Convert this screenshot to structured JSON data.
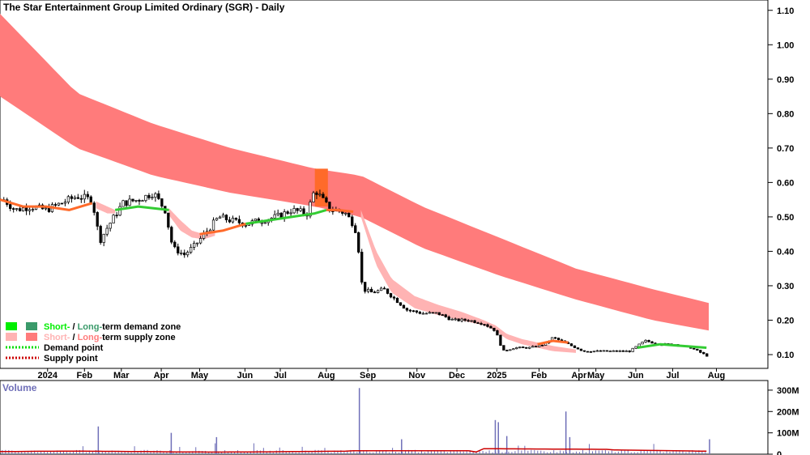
{
  "chart_data": {
    "type": "candlestick",
    "title": "The Star Entertainment Group Limited Ordinary (SGR) - Daily",
    "price_axis": {
      "range": [
        0.06,
        1.13
      ],
      "ticks": [
        0.1,
        0.2,
        0.3,
        0.4,
        0.5,
        0.6,
        0.7,
        0.8,
        0.9,
        1.0,
        1.1
      ],
      "tick_labels": [
        "0.10",
        "0.20",
        "0.30",
        "0.40",
        "0.50",
        "0.60",
        "0.70",
        "0.80",
        "0.90",
        "1.00",
        "1.10"
      ]
    },
    "x_axis": {
      "range": [
        0,
        100
      ],
      "labels": [
        {
          "label": "2024",
          "x": 6.2
        },
        {
          "label": "Feb",
          "x": 11.0
        },
        {
          "label": "Mar",
          "x": 15.8
        },
        {
          "label": "Apr",
          "x": 21.0
        },
        {
          "label": "May",
          "x": 26.0
        },
        {
          "label": "Jun",
          "x": 31.9
        },
        {
          "label": "Jul",
          "x": 36.5
        },
        {
          "label": "Aug",
          "x": 42.5
        },
        {
          "label": "Sep",
          "x": 47.9
        },
        {
          "label": "Nov",
          "x": 54.3
        },
        {
          "label": "Dec",
          "x": 59.5
        },
        {
          "label": "2025",
          "x": 64.7
        },
        {
          "label": "Feb",
          "x": 70.2
        },
        {
          "label": "Apr",
          "x": 75.4
        },
        {
          "label": "May",
          "x": 77.6
        },
        {
          "label": "Jun",
          "x": 82.8
        },
        {
          "label": "Jul",
          "x": 87.6
        },
        {
          "label": "Aug",
          "x": 93.3
        }
      ]
    },
    "long_term_supply_zone": {
      "color": "#ff7b7b",
      "x": [
        0,
        10,
        20,
        30,
        41,
        47,
        55,
        65,
        75,
        85,
        92.3
      ],
      "upper": [
        1.09,
        0.86,
        0.77,
        0.7,
        0.64,
        0.62,
        0.53,
        0.44,
        0.35,
        0.29,
        0.25
      ],
      "lower": [
        0.85,
        0.7,
        0.62,
        0.57,
        0.53,
        0.5,
        0.41,
        0.33,
        0.26,
        0.2,
        0.17
      ]
    },
    "long_term_demand_highlight": {
      "color": "#ff6a2a",
      "x": [
        41.0,
        42.7
      ],
      "upper": [
        0.64,
        0.64
      ],
      "lower": [
        0.53,
        0.53
      ]
    },
    "short_term_supply_zone": {
      "color": "#ffb3b3",
      "x": [
        47.0,
        49.0,
        51.0,
        54.0,
        57.0,
        60.0,
        63.0,
        64.5,
        66.0,
        68.0,
        70.0,
        72.0,
        75.0
      ],
      "upper": [
        0.52,
        0.4,
        0.32,
        0.27,
        0.245,
        0.225,
        0.2,
        0.185,
        0.16,
        0.145,
        0.135,
        0.125,
        0.115
      ],
      "lower": [
        0.5,
        0.36,
        0.28,
        0.235,
        0.215,
        0.2,
        0.185,
        0.17,
        0.145,
        0.13,
        0.12,
        0.11,
        0.105
      ]
    },
    "short_term_supply_zone_2": {
      "color": "#ffb3b3",
      "x": [
        12.5,
        14.0,
        15.0
      ],
      "upper": [
        0.545,
        0.53,
        0.52
      ],
      "lower": [
        0.525,
        0.51,
        0.51
      ]
    },
    "short_term_supply_zone_3": {
      "color": "#ffb3b3",
      "x": [
        22.0,
        23.5,
        25.0,
        26.5,
        28.0
      ],
      "upper": [
        0.525,
        0.49,
        0.46,
        0.45,
        0.46
      ],
      "lower": [
        0.505,
        0.46,
        0.44,
        0.435,
        0.445
      ]
    },
    "trend_line_segments": [
      {
        "color": "#ff6a2a",
        "x": [
          0,
          3,
          6,
          9,
          12
        ],
        "y": [
          0.55,
          0.53,
          0.53,
          0.52,
          0.54
        ]
      },
      {
        "color": "#33cc33",
        "x": [
          15,
          18,
          22
        ],
        "y": [
          0.52,
          0.53,
          0.52
        ]
      },
      {
        "color": "#ff6a2a",
        "x": [
          26,
          29,
          32
        ],
        "y": [
          0.45,
          0.46,
          0.48
        ]
      },
      {
        "color": "#33cc33",
        "x": [
          32,
          35,
          38,
          41,
          42.5
        ],
        "y": [
          0.48,
          0.49,
          0.5,
          0.51,
          0.52
        ]
      },
      {
        "color": "#ff6a2a",
        "x": [
          42.5,
          44,
          46
        ],
        "y": [
          0.52,
          0.52,
          0.515
        ]
      },
      {
        "color": "#ff6a2a",
        "x": [
          70,
          72,
          74
        ],
        "y": [
          0.13,
          0.14,
          0.135
        ]
      },
      {
        "color": "#33cc33",
        "x": [
          83,
          86,
          89,
          92
        ],
        "y": [
          0.12,
          0.13,
          0.125,
          0.12
        ]
      }
    ],
    "price_series": {
      "x": [
        0.5,
        2,
        4,
        6,
        8,
        10,
        12,
        13,
        14,
        16,
        18,
        20,
        21.5,
        22.5,
        24,
        25.5,
        27,
        28.5,
        30,
        32,
        34,
        36,
        38,
        40,
        41,
        42,
        43,
        44,
        45,
        46,
        46.5,
        47.2,
        48.5,
        50,
        51.5,
        53,
        55,
        57,
        59,
        61,
        63,
        64.5,
        65.5,
        67,
        69,
        71,
        72,
        74,
        76,
        78,
        80,
        82,
        84,
        86,
        88,
        90,
        92.2
      ],
      "close": [
        0.55,
        0.52,
        0.53,
        0.52,
        0.54,
        0.56,
        0.55,
        0.43,
        0.47,
        0.54,
        0.55,
        0.57,
        0.52,
        0.41,
        0.39,
        0.42,
        0.46,
        0.5,
        0.49,
        0.48,
        0.49,
        0.5,
        0.52,
        0.51,
        0.58,
        0.55,
        0.52,
        0.52,
        0.51,
        0.48,
        0.45,
        0.29,
        0.28,
        0.29,
        0.26,
        0.23,
        0.22,
        0.22,
        0.2,
        0.2,
        0.19,
        0.17,
        0.11,
        0.12,
        0.12,
        0.13,
        0.15,
        0.13,
        0.11,
        0.11,
        0.11,
        0.11,
        0.14,
        0.13,
        0.13,
        0.12,
        0.095
      ]
    },
    "volume_axis": {
      "range": [
        0,
        330
      ],
      "ticks": [
        0,
        100,
        200,
        300
      ],
      "tick_labels": [
        "0",
        "100M",
        "200M",
        "300M"
      ]
    },
    "volume_title": "Volume",
    "volume_spikes": [
      {
        "x": 12.8,
        "v": 130
      },
      {
        "x": 22.3,
        "v": 100
      },
      {
        "x": 28.2,
        "v": 80
      },
      {
        "x": 46.8,
        "v": 310
      },
      {
        "x": 52.3,
        "v": 70
      },
      {
        "x": 64.5,
        "v": 160
      },
      {
        "x": 64.9,
        "v": 150
      },
      {
        "x": 66.0,
        "v": 85
      },
      {
        "x": 73.7,
        "v": 200
      },
      {
        "x": 74.2,
        "v": 80
      },
      {
        "x": 92.4,
        "v": 70
      }
    ],
    "volume_baseline_color": "#cc0000"
  },
  "legend": {
    "row1": {
      "a": "Short-",
      "sep": " / ",
      "b": "Long-",
      "c": "term demand zone"
    },
    "row2": {
      "a": "Short-",
      "sep": " / ",
      "b": "Long-",
      "c": "term supply zone"
    },
    "row3": "Demand point",
    "row4": "Supply point",
    "colors": {
      "short_demand": "#00ee00",
      "long_demand": "#3a9a6a",
      "short_supply": "#ffb3b3",
      "long_supply": "#ff7b7b",
      "demand_point": "#00dd00",
      "supply_point": "#cc0000"
    }
  }
}
